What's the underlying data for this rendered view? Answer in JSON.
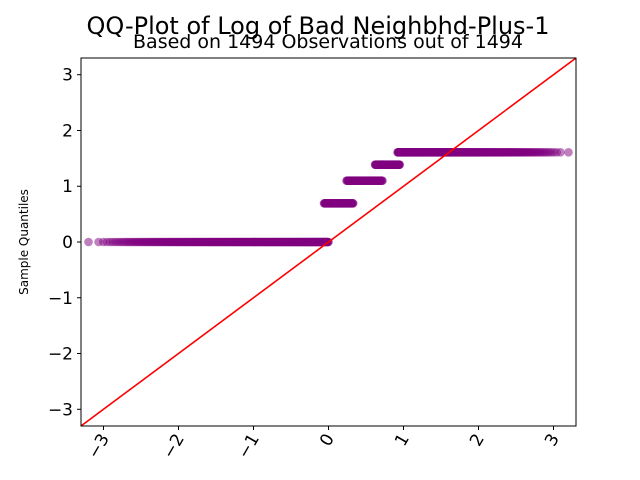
{
  "chart_data": {
    "type": "scatter",
    "title": "QQ-Plot of Log of Bad Neighbhd-Plus-1",
    "subtitle": "Based on 1494 Observations out of 1494",
    "xlabel": "",
    "ylabel": "Sample Quantiles",
    "xlim": [
      -3.3,
      3.3
    ],
    "ylim": [
      -3.3,
      3.3
    ],
    "x_ticks": [
      -3,
      -2,
      -1,
      0,
      1,
      2,
      3
    ],
    "y_ticks": [
      -3,
      -2,
      -1,
      0,
      1,
      2,
      3
    ],
    "x_tick_labels": [
      "−3",
      "−2",
      "−1",
      "0",
      "1",
      "2",
      "3"
    ],
    "y_tick_labels": [
      "−3",
      "−2",
      "−1",
      "0",
      "1",
      "2",
      "3"
    ],
    "grid": false,
    "colors": {
      "points": "#800080",
      "reference_line": "#ff0000"
    },
    "reference_line": {
      "slope": 1,
      "intercept": 0
    },
    "series": [
      {
        "values_groups": [
          {
            "y": 0.0,
            "x_range": [
              -3.2,
              0.0
            ]
          },
          {
            "y": 0.693,
            "x_range": [
              -0.06,
              0.33
            ]
          },
          {
            "y": 1.099,
            "x_range": [
              0.24,
              0.72
            ]
          },
          {
            "y": 1.386,
            "x_range": [
              0.62,
              0.95
            ]
          },
          {
            "y": 1.609,
            "x_range": [
              0.92,
              3.2
            ]
          }
        ]
      }
    ]
  }
}
